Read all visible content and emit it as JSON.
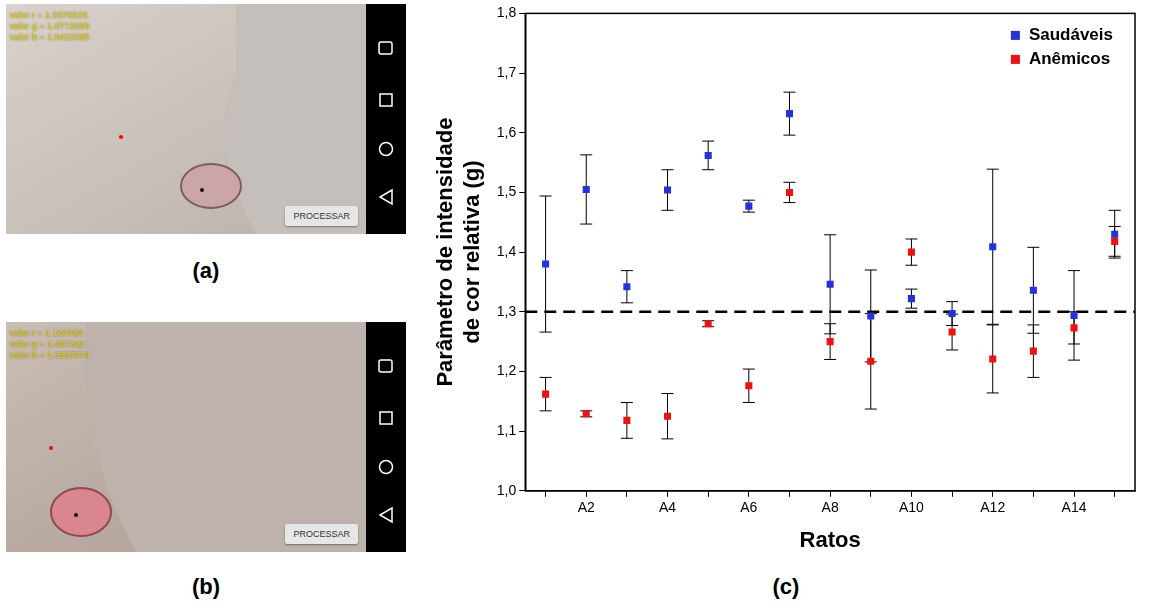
{
  "panels": [
    {
      "label": "(a)",
      "readouts": [
        "valor r = 1.0370525",
        "valor g = 1.0772059",
        "valor b = 1.0422065"
      ],
      "button": "PROCESSAR"
    },
    {
      "label": "(b)",
      "readouts": [
        "valor r = 1.103792",
        "valor g = 1.497342",
        "valor b = 1.3337574"
      ],
      "button": "PROCESSAR"
    }
  ],
  "chart_label": "(c)",
  "chart_data": {
    "type": "scatter",
    "x_label": "Ratos",
    "y_label": "Parâmetro de intensidade de cor relativa (g)",
    "categories": [
      null,
      "A2",
      null,
      "A4",
      null,
      "A6",
      null,
      "A8",
      null,
      "A10",
      null,
      "A12",
      null,
      "A14",
      null
    ],
    "series": [
      {
        "name": "Saudáveis",
        "color": "#2233dd",
        "marker": "square",
        "values": [
          1.38,
          1.505,
          1.342,
          1.504,
          1.562,
          1.477,
          1.632,
          1.346,
          1.293,
          1.322,
          1.297,
          1.409,
          1.336,
          1.294,
          1.43
        ],
        "errors": [
          0.114,
          0.058,
          0.027,
          0.034,
          0.024,
          0.01,
          0.036,
          0.083,
          0.077,
          0.016,
          0.02,
          0.13,
          0.072,
          0.075,
          0.04
        ]
      },
      {
        "name": "Anêmicos",
        "color": "#ee1111",
        "marker": "square",
        "values": [
          1.162,
          1.129,
          1.118,
          1.125,
          1.28,
          1.176,
          1.5,
          1.25,
          1.217,
          1.4,
          1.266,
          1.221,
          1.234,
          1.273,
          1.418
        ],
        "errors": [
          0.028,
          0.005,
          0.03,
          0.038,
          0.005,
          0.028,
          0.017,
          0.03,
          0.08,
          0.022,
          0.03,
          0.057,
          0.044,
          0.027,
          0.025
        ]
      }
    ],
    "threshold": 1.3,
    "ylim": [
      1.0,
      1.8
    ],
    "yticks": [
      {
        "value": 1.0,
        "label": "1,0"
      },
      {
        "value": 1.1,
        "label": "1,1"
      },
      {
        "value": 1.2,
        "label": "1,2"
      },
      {
        "value": 1.3,
        "label": "1,3"
      },
      {
        "value": 1.4,
        "label": "1,4"
      },
      {
        "value": 1.5,
        "label": "1,5"
      },
      {
        "value": 1.6,
        "label": "1,6"
      },
      {
        "value": 1.7,
        "label": "1,7"
      },
      {
        "value": 1.8,
        "label": "1,8"
      }
    ],
    "grid": false,
    "legend": "upper right"
  }
}
